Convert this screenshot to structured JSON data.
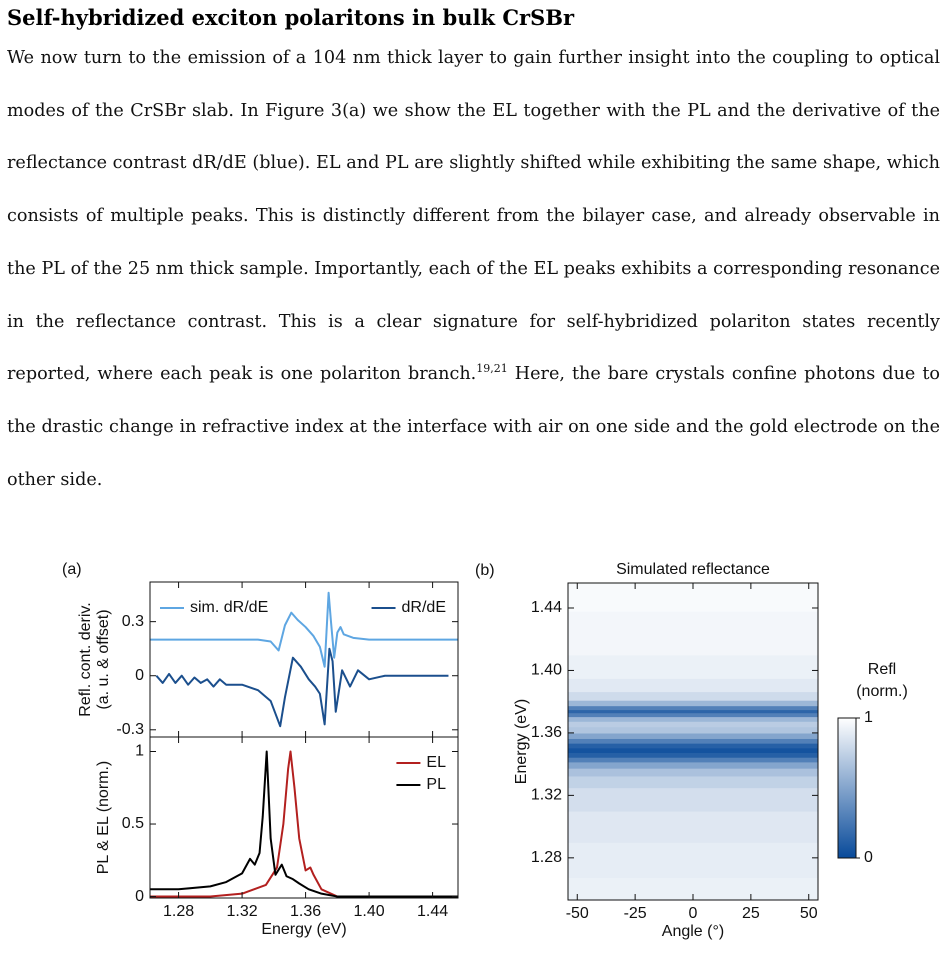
{
  "heading": "Self-hybridized exciton polaritons in bulk CrSBr",
  "paragraph": {
    "text": "We now turn to the emission of a 104 nm thick layer to gain further insight into the coupling to optical modes of the CrSBr slab. In Figure 3(a) we show the EL together with the PL and the derivative of the reflectance contrast dR/dE (blue). EL and PL are slightly shifted while exhibiting the same shape, which consists of multiple peaks. This is distinctly different from the bilayer case, and already observable in the PL of the 25 nm thick sample. Importantly, each of the EL peaks exhibits a corresponding resonance in the reflectance contrast. This is a clear signature for self-hybridized polariton states recently reported, where each peak is one polariton branch.",
    "citation": "19,21",
    "text_after": " Here, the bare crystals confine photons due to the drastic change in refractive index at the interface with air on one side and the gold electrode on the other side."
  },
  "chart_data": [
    {
      "type": "line",
      "panel_label": "(a)",
      "ylabel": [
        "Refl. cont. deriv.",
        "(a. u. & offset)"
      ],
      "xlim": [
        1.262,
        1.456
      ],
      "xticks": [
        1.28,
        1.32,
        1.36,
        {
          "value": 1.4,
          "label": "1.40"
        },
        1.44
      ],
      "ylim": [
        -0.34,
        0.52
      ],
      "yticks": [
        0.3,
        0,
        -0.3
      ],
      "series": [
        {
          "name": "sim. dR/dE",
          "color": "#5ea6e2",
          "legend_loc": "upper left",
          "x": [
            1.262,
            1.3,
            1.33,
            1.338,
            1.343,
            1.347,
            1.351,
            1.355,
            1.36,
            1.365,
            1.369,
            1.372,
            1.3745,
            1.376,
            1.378,
            1.38,
            1.382,
            1.384,
            1.39,
            1.4,
            1.456
          ],
          "values": [
            0.2,
            0.2,
            0.2,
            0.19,
            0.14,
            0.28,
            0.35,
            0.31,
            0.27,
            0.22,
            0.16,
            0.05,
            0.46,
            0.3,
            0.1,
            0.24,
            0.27,
            0.23,
            0.21,
            0.2,
            0.2
          ]
        },
        {
          "name": "dR/dE",
          "color": "#1b4f8d",
          "legend_loc": "upper right",
          "x": [
            1.266,
            1.27,
            1.274,
            1.278,
            1.282,
            1.286,
            1.29,
            1.294,
            1.298,
            1.302,
            1.306,
            1.31,
            1.32,
            1.33,
            1.338,
            1.344,
            1.347,
            1.352,
            1.357,
            1.362,
            1.366,
            1.369,
            1.372,
            1.375,
            1.377,
            1.379,
            1.383,
            1.388,
            1.393,
            1.4,
            1.41,
            1.45
          ],
          "values": [
            0.0,
            -0.04,
            0.01,
            -0.04,
            0.0,
            -0.05,
            -0.01,
            -0.04,
            -0.02,
            -0.06,
            -0.02,
            -0.05,
            -0.05,
            -0.08,
            -0.14,
            -0.28,
            -0.12,
            0.1,
            0.05,
            -0.02,
            -0.06,
            -0.1,
            -0.27,
            0.15,
            0.08,
            -0.2,
            0.03,
            -0.06,
            0.03,
            -0.02,
            0.0,
            0.0
          ]
        }
      ]
    },
    {
      "type": "line",
      "ylabel": [
        "PL & EL (norm.)"
      ],
      "xlabel": "Energy (eV)",
      "xlim": [
        1.262,
        1.456
      ],
      "xticks": [
        1.28,
        1.32,
        1.36,
        {
          "value": 1.4,
          "label": "1.40"
        },
        1.44
      ],
      "ylim": [
        -0.01,
        1.1
      ],
      "yticks": [
        0,
        0.5,
        1
      ],
      "legend": "upper right",
      "series": [
        {
          "name": "EL",
          "color": "#b3201f",
          "x": [
            1.262,
            1.3,
            1.32,
            1.335,
            1.342,
            1.346,
            1.349,
            1.3505,
            1.353,
            1.356,
            1.36,
            1.363,
            1.365,
            1.37,
            1.38,
            1.456
          ],
          "values": [
            0.0,
            0.0,
            0.02,
            0.08,
            0.2,
            0.5,
            0.88,
            1.0,
            0.75,
            0.4,
            0.18,
            0.2,
            0.15,
            0.05,
            0.0,
            0.0
          ]
        },
        {
          "name": "PL",
          "color": "#000000",
          "x": [
            1.262,
            1.28,
            1.3,
            1.31,
            1.32,
            1.325,
            1.328,
            1.331,
            1.333,
            1.3355,
            1.338,
            1.341,
            1.345,
            1.348,
            1.352,
            1.356,
            1.362,
            1.37,
            1.38,
            1.456
          ],
          "values": [
            0.05,
            0.05,
            0.07,
            0.1,
            0.16,
            0.26,
            0.22,
            0.3,
            0.55,
            1.0,
            0.4,
            0.15,
            0.22,
            0.14,
            0.12,
            0.09,
            0.05,
            0.02,
            0.0,
            0.0
          ]
        }
      ]
    },
    {
      "type": "heatmap",
      "panel_label": "(b)",
      "title": "Simulated reflectance",
      "xlabel": "Angle (°)",
      "ylabel": [
        "Energy (eV)"
      ],
      "xlim": [
        -54,
        54
      ],
      "xticks": [
        -50,
        -25,
        0,
        25,
        50
      ],
      "ylim": [
        1.253,
        1.456
      ],
      "yticks": [
        1.28,
        1.32,
        1.36,
        {
          "value": 1.4,
          "label": "1.40"
        },
        1.44
      ],
      "y": [
        1.255,
        1.28,
        1.3,
        1.32,
        1.33,
        1.335,
        1.34,
        1.343,
        1.346,
        1.349,
        1.352,
        1.355,
        1.358,
        1.362,
        1.366,
        1.369,
        1.372,
        1.374,
        1.376,
        1.379,
        1.383,
        1.39,
        1.4,
        1.42,
        1.456
      ],
      "values": [
        0.92,
        0.9,
        0.87,
        0.82,
        0.75,
        0.66,
        0.5,
        0.3,
        0.12,
        0.05,
        0.12,
        0.3,
        0.5,
        0.68,
        0.72,
        0.6,
        0.3,
        0.15,
        0.3,
        0.6,
        0.8,
        0.88,
        0.92,
        0.95,
        0.97
      ],
      "colorbar": {
        "label": [
          "Refl",
          "(norm.)"
        ],
        "lim": [
          0,
          1
        ],
        "ticks": [
          0,
          1
        ],
        "colors": [
          "#084a9a",
          "#ffffff"
        ]
      }
    }
  ]
}
